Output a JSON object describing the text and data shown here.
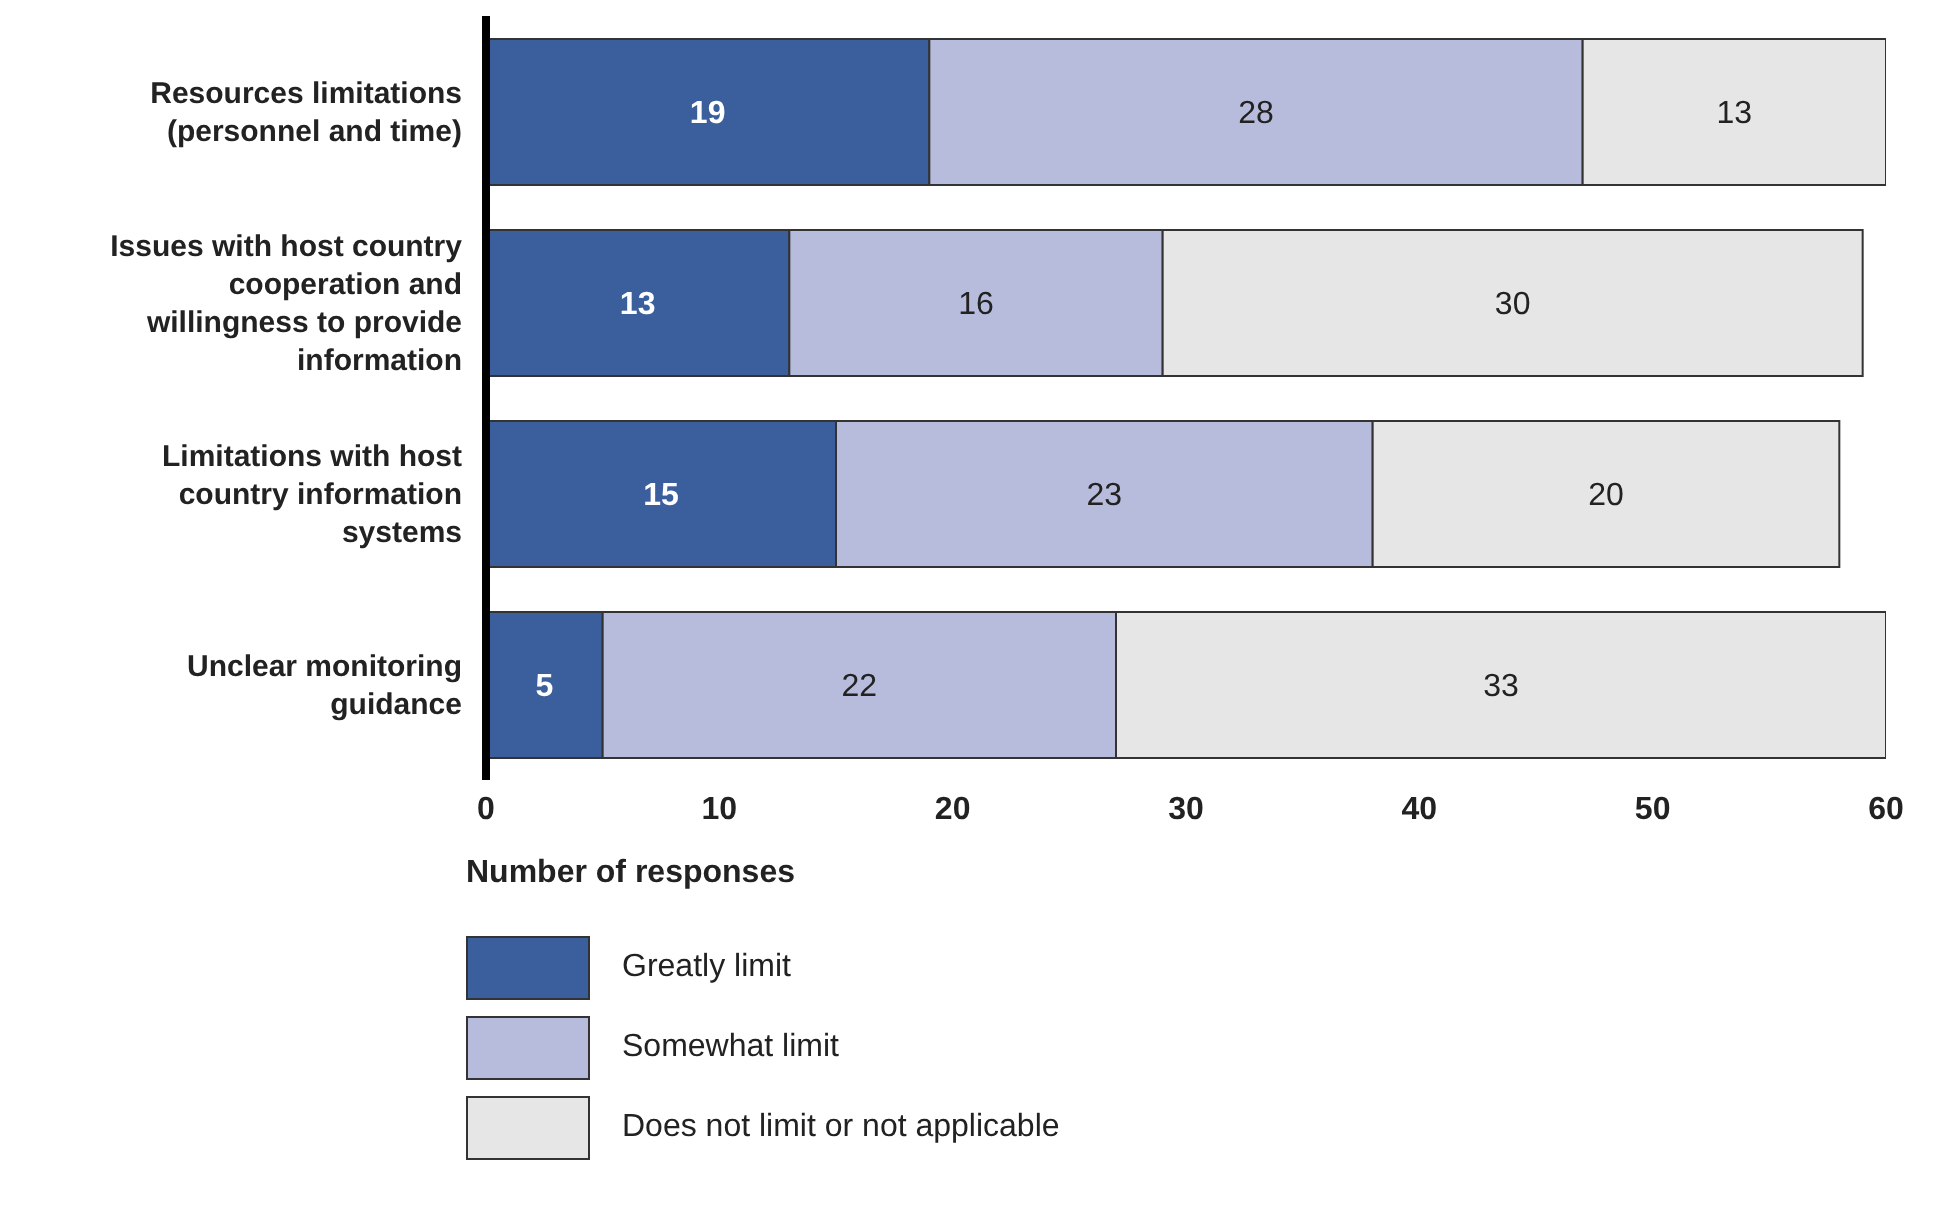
{
  "chart_data": {
    "type": "bar",
    "orientation": "horizontal",
    "stacked": true,
    "xlabel": "Number of responses",
    "categories": [
      "Resources limitations (personnel and time)",
      "Issues with host country cooperation and willingness to provide information",
      "Limitations with host country information systems",
      "Unclear monitoring guidance"
    ],
    "series": [
      {
        "name": "Greatly limit",
        "color": "#3a5f9c",
        "values": [
          19,
          13,
          15,
          5
        ]
      },
      {
        "name": "Somewhat limit",
        "color": "#b8bcdc",
        "values": [
          28,
          16,
          23,
          22
        ]
      },
      {
        "name": "Does not limit or not applicable",
        "color": "#e6e6e6",
        "values": [
          13,
          30,
          20,
          33
        ]
      }
    ],
    "xlim": [
      0,
      60
    ],
    "xticks": [
      0,
      10,
      20,
      30,
      40,
      50,
      60
    ],
    "data_labels": true,
    "legend": "bottom",
    "grid": false
  }
}
